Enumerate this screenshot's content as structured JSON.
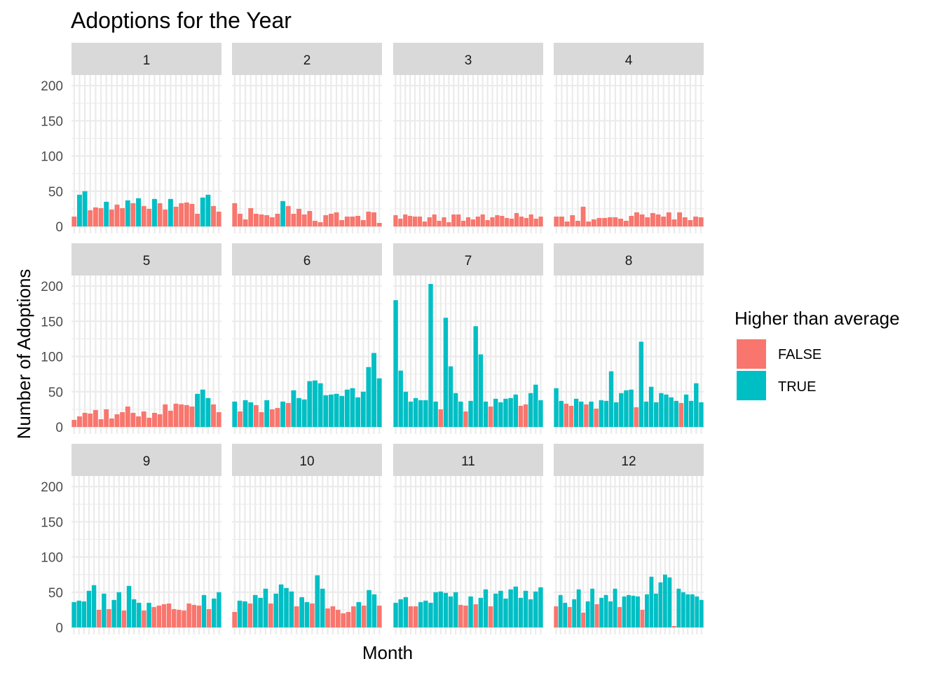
{
  "chart_data": {
    "type": "bar",
    "title": "Adoptions for the Year",
    "xlabel": "Month",
    "ylabel": "Number of Adoptions",
    "ylim": [
      0,
      215
    ],
    "yticks": [
      0,
      50,
      100,
      150,
      200
    ],
    "grid": true,
    "facet_by": "month",
    "legend": {
      "title": "Higher than average",
      "placement": "right",
      "entries": [
        {
          "label": "FALSE",
          "color": "#F8766D"
        },
        {
          "label": "TRUE",
          "color": "#00BFC4"
        }
      ]
    },
    "facets": [
      {
        "label": "1",
        "values": [
          14,
          45,
          50,
          23,
          27,
          26,
          35,
          24,
          31,
          26,
          37,
          33,
          40,
          29,
          25,
          39,
          33,
          24,
          39,
          28,
          33,
          34,
          32,
          18,
          41,
          45,
          29,
          21
        ]
      },
      {
        "label": "2",
        "values": [
          33,
          18,
          10,
          26,
          18,
          17,
          16,
          13,
          18,
          36,
          29,
          18,
          25,
          17,
          22,
          8,
          6,
          16,
          18,
          20,
          9,
          14,
          14,
          15,
          9,
          21,
          20,
          5
        ]
      },
      {
        "label": "3",
        "values": [
          16,
          11,
          17,
          15,
          14,
          14,
          7,
          13,
          17,
          8,
          13,
          6,
          17,
          17,
          8,
          13,
          10,
          14,
          17,
          9,
          13,
          16,
          15,
          12,
          11,
          19,
          14,
          12,
          17,
          11,
          14
        ]
      },
      {
        "label": "4",
        "values": [
          14,
          14,
          7,
          16,
          8,
          28,
          7,
          10,
          12,
          12,
          13,
          13,
          11,
          8,
          15,
          20,
          17,
          13,
          19,
          17,
          14,
          20,
          10,
          20,
          13,
          9,
          14,
          13
        ]
      },
      {
        "label": "5",
        "values": [
          10,
          15,
          20,
          19,
          24,
          11,
          25,
          12,
          18,
          21,
          29,
          20,
          15,
          22,
          13,
          20,
          18,
          32,
          23,
          33,
          32,
          31,
          29,
          47,
          53,
          41,
          32,
          21
        ]
      },
      {
        "label": "6",
        "values": [
          36,
          22,
          38,
          35,
          31,
          21,
          38,
          25,
          27,
          36,
          34,
          52,
          41,
          39,
          65,
          66,
          62,
          45,
          46,
          47,
          44,
          53,
          55,
          42,
          50,
          85,
          105,
          69
        ]
      },
      {
        "label": "7",
        "values": [
          180,
          80,
          50,
          36,
          41,
          38,
          38,
          203,
          36,
          25,
          155,
          86,
          48,
          36,
          22,
          37,
          143,
          103,
          36,
          29,
          40,
          35,
          40,
          41,
          46,
          30,
          32,
          48,
          60,
          38
        ]
      },
      {
        "label": "8",
        "values": [
          55,
          37,
          33,
          30,
          40,
          36,
          32,
          36,
          26,
          38,
          37,
          79,
          35,
          48,
          52,
          53,
          28,
          121,
          36,
          57,
          35,
          48,
          46,
          42,
          37,
          34,
          46,
          37,
          62,
          35
        ]
      },
      {
        "label": "9",
        "values": [
          36,
          38,
          37,
          52,
          60,
          25,
          48,
          26,
          39,
          50,
          24,
          59,
          40,
          35,
          24,
          35,
          29,
          31,
          33,
          34,
          26,
          25,
          24,
          34,
          32,
          31,
          46,
          26,
          41,
          50
        ]
      },
      {
        "label": "10",
        "values": [
          22,
          38,
          37,
          34,
          46,
          42,
          55,
          34,
          48,
          61,
          56,
          51,
          30,
          43,
          36,
          34,
          74,
          55,
          27,
          30,
          25,
          20,
          22,
          30,
          36,
          31,
          53,
          47,
          31
        ]
      },
      {
        "label": "11",
        "values": [
          35,
          40,
          43,
          30,
          30,
          36,
          38,
          35,
          50,
          51,
          49,
          44,
          50,
          32,
          31,
          44,
          33,
          42,
          54,
          30,
          48,
          52,
          41,
          54,
          58,
          42,
          52,
          40,
          51,
          57
        ]
      },
      {
        "label": "12",
        "values": [
          30,
          46,
          35,
          29,
          40,
          54,
          21,
          37,
          55,
          33,
          42,
          46,
          37,
          55,
          29,
          44,
          46,
          45,
          44,
          25,
          47,
          72,
          48,
          64,
          75,
          71,
          2,
          55,
          50,
          47,
          47,
          44,
          39
        ]
      }
    ],
    "colors": {
      "false": "#F8766D",
      "true": "#00BFC4",
      "grid": "#ebebeb",
      "strip": "#d9d9d9"
    }
  }
}
